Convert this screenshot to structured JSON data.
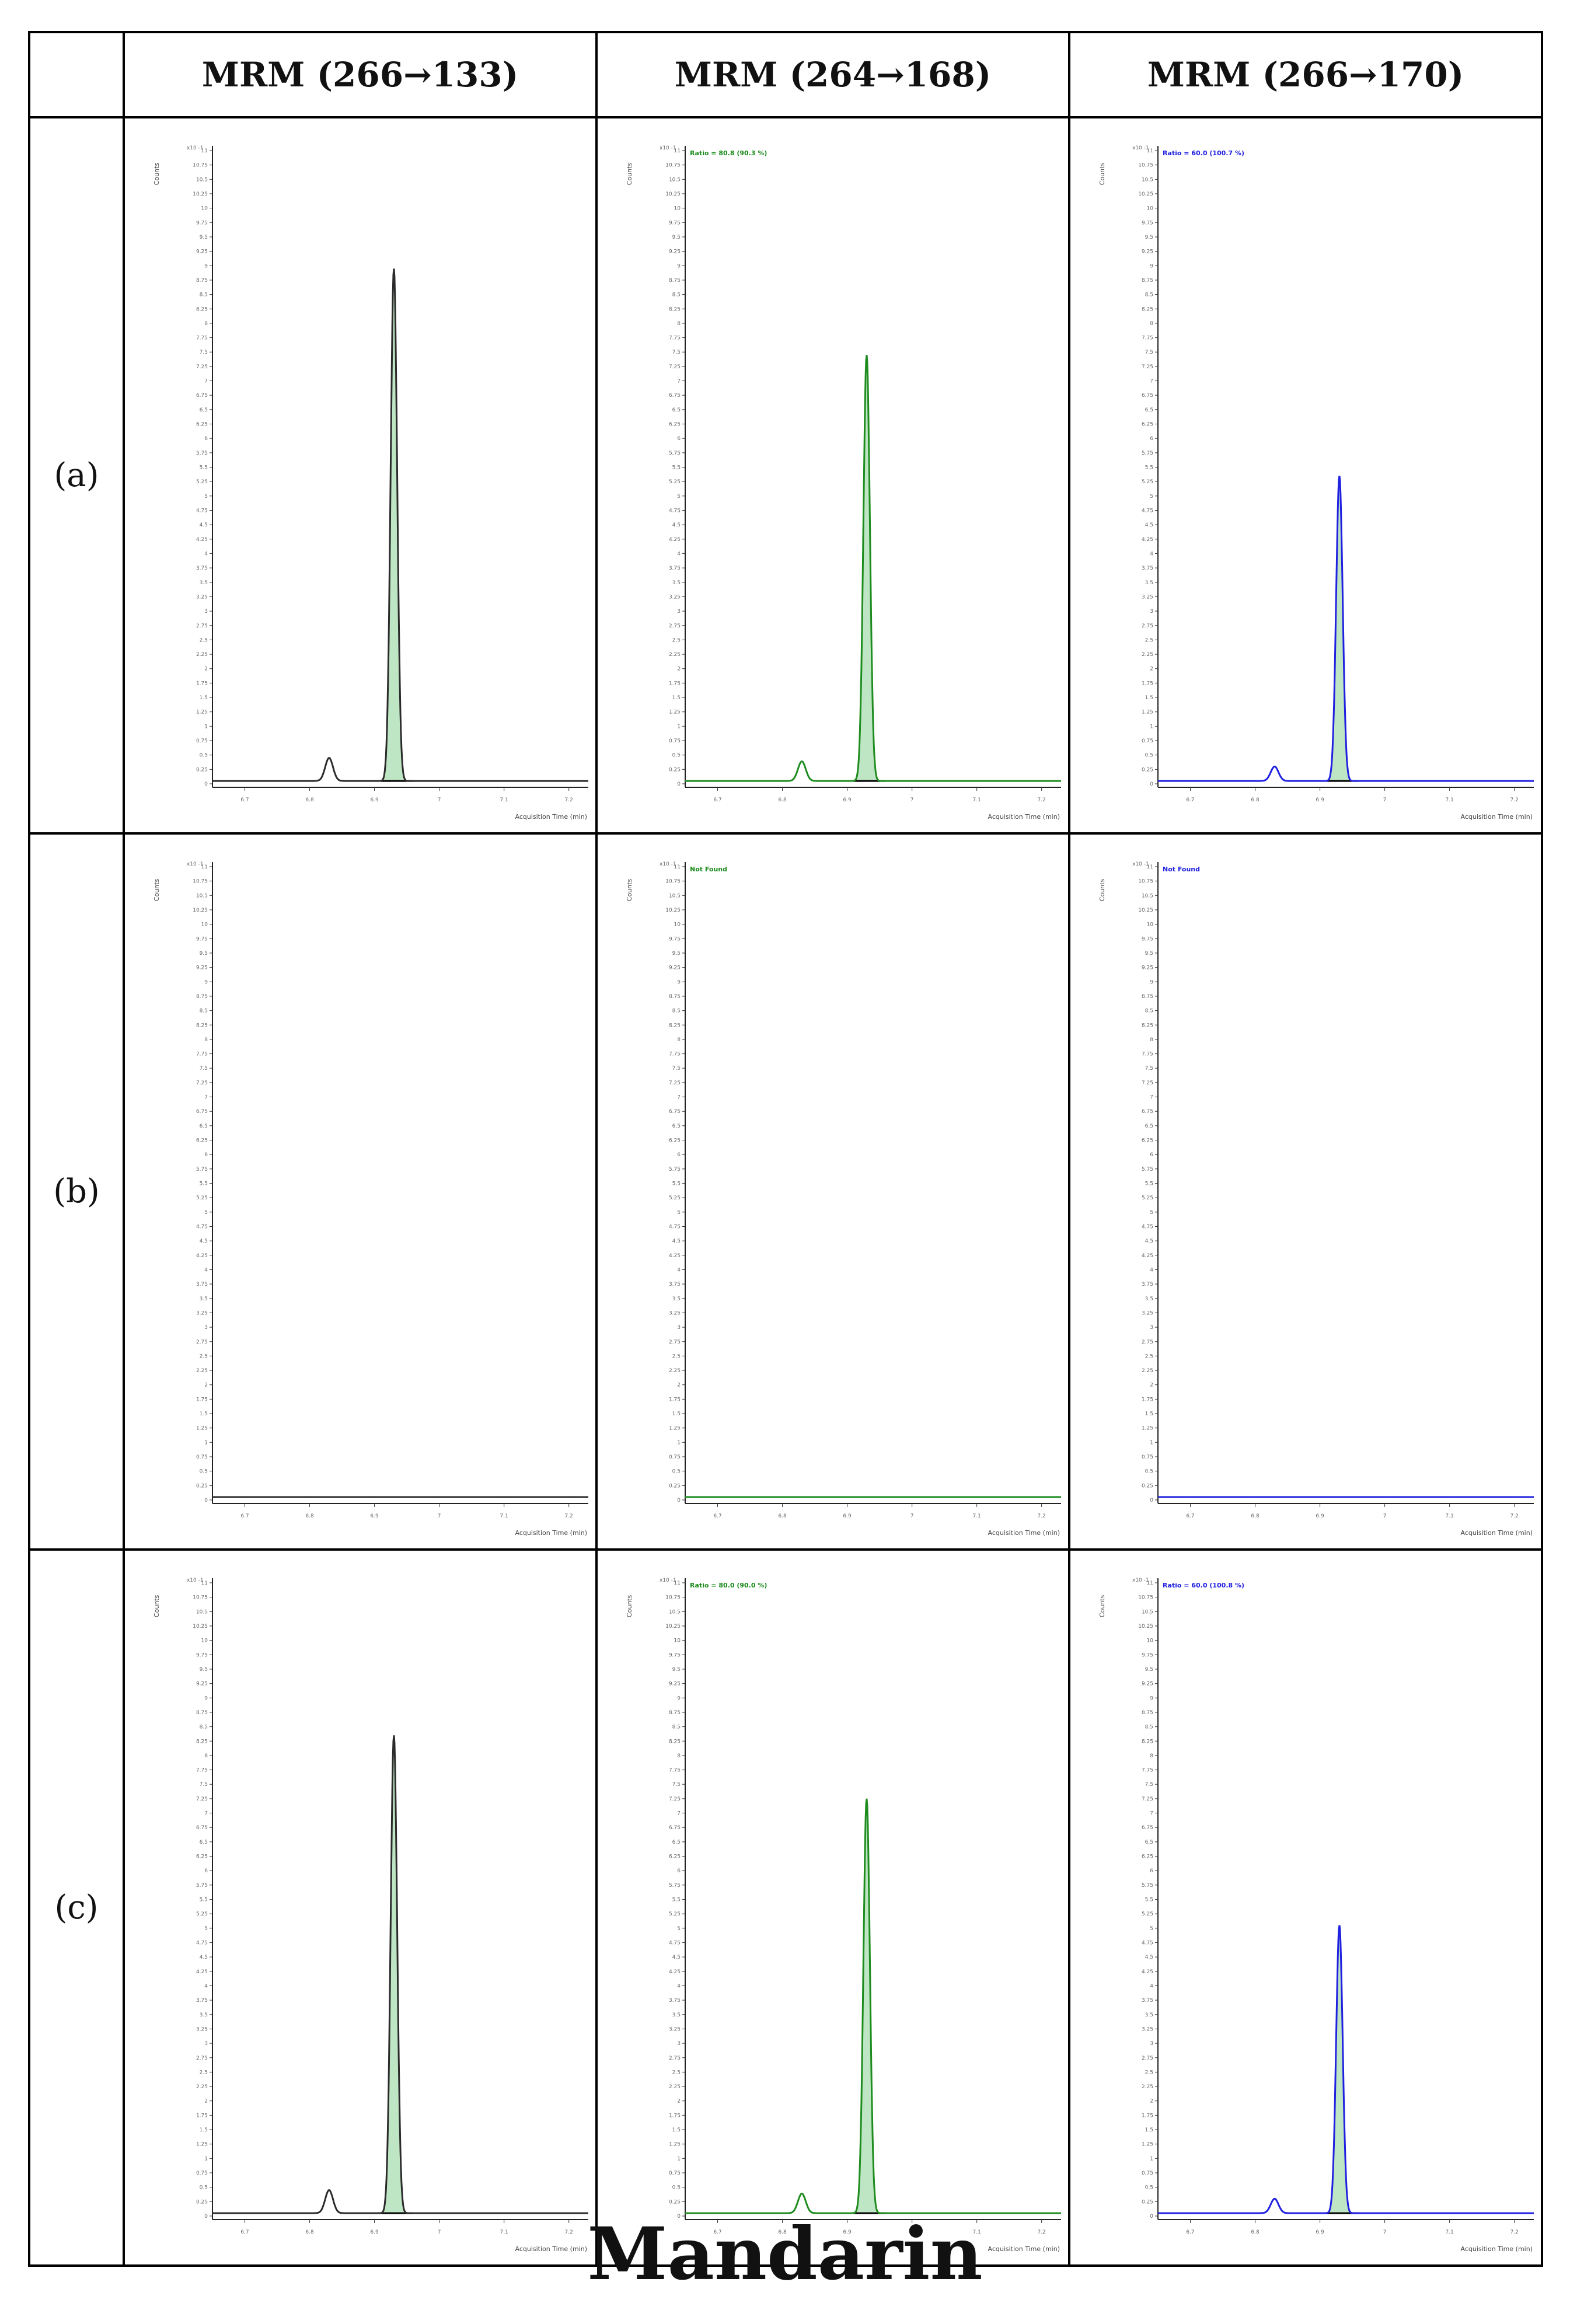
{
  "caption": "Mandarin",
  "columns": [
    {
      "label": "MRM (266→133)",
      "color": "#2b2b2b",
      "fill": "#bfe6c4"
    },
    {
      "label": "MRM (264→168)",
      "color": "#1e8c1e",
      "fill": "#bfe6c4"
    },
    {
      "label": "MRM (266→170)",
      "color": "#2020e0",
      "fill": "#bfe6c4"
    }
  ],
  "rows": [
    {
      "label": "(a)"
    },
    {
      "label": "(b)"
    },
    {
      "label": "(c)"
    }
  ],
  "chart_data": [
    {
      "type": "line",
      "row": "(a)",
      "column": "MRM (266→133)",
      "note": "",
      "xlabel": "Acquisition Time (min)",
      "ylabel": "Counts",
      "y_multiplier": "x10 -1",
      "xlim": [
        6.65,
        7.23
      ],
      "ylim": [
        0,
        11
      ],
      "xticks": [
        "6.7",
        "6.8",
        "6.9",
        "7",
        "7.1",
        "7.2"
      ],
      "yticks": [
        "0",
        "0.25",
        "0.5",
        "0.75",
        "1",
        "1.25",
        "1.5",
        "1.75",
        "2",
        "2.25",
        "2.5",
        "2.75",
        "3",
        "3.25",
        "3.5",
        "3.75",
        "4",
        "4.25",
        "4.5",
        "4.75",
        "5",
        "5.25",
        "5.5",
        "5.75",
        "6",
        "6.25",
        "6.5",
        "6.75",
        "7",
        "7.25",
        "7.5",
        "7.75",
        "8",
        "8.25",
        "8.5",
        "8.75",
        "9",
        "9.25",
        "9.5",
        "9.75",
        "10",
        "10.25",
        "10.5",
        "10.75",
        "11"
      ],
      "peaks": [
        {
          "rt": 6.83,
          "height": 0.4,
          "width": 0.006
        },
        {
          "rt": 6.93,
          "height": 8.9,
          "width": 0.005
        }
      ],
      "baseline": 0.05,
      "integrated_rt": [
        6.915,
        6.95
      ]
    },
    {
      "type": "line",
      "row": "(a)",
      "column": "MRM (264→168)",
      "note": "Ratio = 80.8 (90.3 %)",
      "xlabel": "Acquisition Time (min)",
      "ylabel": "Counts",
      "y_multiplier": "x10 -1",
      "xlim": [
        6.65,
        7.23
      ],
      "ylim": [
        0,
        11
      ],
      "xticks": [
        "6.7",
        "6.8",
        "6.9",
        "7",
        "7.1",
        "7.2"
      ],
      "yticks": [
        "0",
        "0.25",
        "0.5",
        "0.75",
        "1",
        "1.25",
        "1.5",
        "1.75",
        "2",
        "2.25",
        "2.5",
        "2.75",
        "3",
        "3.25",
        "3.5",
        "3.75",
        "4",
        "4.25",
        "4.5",
        "4.75",
        "5",
        "5.25",
        "5.5",
        "5.75",
        "6",
        "6.25",
        "6.5",
        "6.75",
        "7",
        "7.25",
        "7.5",
        "7.75",
        "8",
        "8.25",
        "8.5",
        "8.75",
        "9",
        "9.25",
        "9.5",
        "9.75",
        "10",
        "10.25",
        "10.5",
        "10.75",
        "11"
      ],
      "peaks": [
        {
          "rt": 6.83,
          "height": 0.34,
          "width": 0.006
        },
        {
          "rt": 6.93,
          "height": 7.4,
          "width": 0.005
        }
      ],
      "baseline": 0.05,
      "integrated_rt": [
        6.915,
        6.95
      ]
    },
    {
      "type": "line",
      "row": "(a)",
      "column": "MRM (266→170)",
      "note": "Ratio = 60.0 (100.7 %)",
      "xlabel": "Acquisition Time (min)",
      "ylabel": "Counts",
      "y_multiplier": "x10 -1",
      "xlim": [
        6.65,
        7.23
      ],
      "ylim": [
        0,
        11
      ],
      "xticks": [
        "6.7",
        "6.8",
        "6.9",
        "7",
        "7.1",
        "7.2"
      ],
      "yticks": [
        "0",
        "0.25",
        "0.5",
        "0.75",
        "1",
        "1.25",
        "1.5",
        "1.75",
        "2",
        "2.25",
        "2.5",
        "2.75",
        "3",
        "3.25",
        "3.5",
        "3.75",
        "4",
        "4.25",
        "4.5",
        "4.75",
        "5",
        "5.25",
        "5.5",
        "5.75",
        "6",
        "6.25",
        "6.5",
        "6.75",
        "7",
        "7.25",
        "7.5",
        "7.75",
        "8",
        "8.25",
        "8.5",
        "8.75",
        "9",
        "9.25",
        "9.5",
        "9.75",
        "10",
        "10.25",
        "10.5",
        "10.75",
        "11"
      ],
      "peaks": [
        {
          "rt": 6.83,
          "height": 0.25,
          "width": 0.006
        },
        {
          "rt": 6.93,
          "height": 5.3,
          "width": 0.005
        }
      ],
      "baseline": 0.05,
      "integrated_rt": [
        6.915,
        6.95
      ]
    },
    {
      "type": "line",
      "row": "(b)",
      "column": "MRM (266→133)",
      "note": "",
      "xlabel": "Acquisition Time (min)",
      "ylabel": "Counts",
      "y_multiplier": "x10 -1",
      "xlim": [
        6.65,
        7.23
      ],
      "ylim": [
        0,
        11
      ],
      "xticks": [
        "6.7",
        "6.8",
        "6.9",
        "7",
        "7.1",
        "7.2"
      ],
      "yticks": [
        "0",
        "0.25",
        "0.5",
        "0.75",
        "1",
        "1.25",
        "1.5",
        "1.75",
        "2",
        "2.25",
        "2.5",
        "2.75",
        "3",
        "3.25",
        "3.5",
        "3.75",
        "4",
        "4.25",
        "4.5",
        "4.75",
        "5",
        "5.25",
        "5.5",
        "5.75",
        "6",
        "6.25",
        "6.5",
        "6.75",
        "7",
        "7.25",
        "7.5",
        "7.75",
        "8",
        "8.25",
        "8.5",
        "8.75",
        "9",
        "9.25",
        "9.5",
        "9.75",
        "10",
        "10.25",
        "10.5",
        "10.75",
        "11"
      ],
      "peaks": [],
      "baseline": 0.05,
      "integrated_rt": []
    },
    {
      "type": "line",
      "row": "(b)",
      "column": "MRM (264→168)",
      "note": "Not Found",
      "xlabel": "Acquisition Time (min)",
      "ylabel": "Counts",
      "y_multiplier": "x10 -1",
      "xlim": [
        6.65,
        7.23
      ],
      "ylim": [
        0,
        11
      ],
      "xticks": [
        "6.7",
        "6.8",
        "6.9",
        "7",
        "7.1",
        "7.2"
      ],
      "yticks": [
        "0",
        "0.25",
        "0.5",
        "0.75",
        "1",
        "1.25",
        "1.5",
        "1.75",
        "2",
        "2.25",
        "2.5",
        "2.75",
        "3",
        "3.25",
        "3.5",
        "3.75",
        "4",
        "4.25",
        "4.5",
        "4.75",
        "5",
        "5.25",
        "5.5",
        "5.75",
        "6",
        "6.25",
        "6.5",
        "6.75",
        "7",
        "7.25",
        "7.5",
        "7.75",
        "8",
        "8.25",
        "8.5",
        "8.75",
        "9",
        "9.25",
        "9.5",
        "9.75",
        "10",
        "10.25",
        "10.5",
        "10.75",
        "11"
      ],
      "peaks": [],
      "baseline": 0.05,
      "integrated_rt": []
    },
    {
      "type": "line",
      "row": "(b)",
      "column": "MRM (266→170)",
      "note": "Not Found",
      "xlabel": "Acquisition Time (min)",
      "ylabel": "Counts",
      "y_multiplier": "x10 -1",
      "xlim": [
        6.65,
        7.23
      ],
      "ylim": [
        0,
        11
      ],
      "xticks": [
        "6.7",
        "6.8",
        "6.9",
        "7",
        "7.1",
        "7.2"
      ],
      "yticks": [
        "0",
        "0.25",
        "0.5",
        "0.75",
        "1",
        "1.25",
        "1.5",
        "1.75",
        "2",
        "2.25",
        "2.5",
        "2.75",
        "3",
        "3.25",
        "3.5",
        "3.75",
        "4",
        "4.25",
        "4.5",
        "4.75",
        "5",
        "5.25",
        "5.5",
        "5.75",
        "6",
        "6.25",
        "6.5",
        "6.75",
        "7",
        "7.25",
        "7.5",
        "7.75",
        "8",
        "8.25",
        "8.5",
        "8.75",
        "9",
        "9.25",
        "9.5",
        "9.75",
        "10",
        "10.25",
        "10.5",
        "10.75",
        "11"
      ],
      "peaks": [],
      "baseline": 0.05,
      "integrated_rt": []
    },
    {
      "type": "line",
      "row": "(c)",
      "column": "MRM (266→133)",
      "note": "",
      "xlabel": "Acquisition Time (min)",
      "ylabel": "Counts",
      "y_multiplier": "x10 -1",
      "xlim": [
        6.65,
        7.23
      ],
      "ylim": [
        0,
        11
      ],
      "xticks": [
        "6.7",
        "6.8",
        "6.9",
        "7",
        "7.1",
        "7.2"
      ],
      "yticks": [
        "0",
        "0.25",
        "0.5",
        "0.75",
        "1",
        "1.25",
        "1.5",
        "1.75",
        "2",
        "2.25",
        "2.5",
        "2.75",
        "3",
        "3.25",
        "3.5",
        "3.75",
        "4",
        "4.25",
        "4.5",
        "4.75",
        "5",
        "5.25",
        "5.5",
        "5.75",
        "6",
        "6.25",
        "6.5",
        "6.75",
        "7",
        "7.25",
        "7.5",
        "7.75",
        "8",
        "8.25",
        "8.5",
        "8.75",
        "9",
        "9.25",
        "9.5",
        "9.75",
        "10",
        "10.25",
        "10.5",
        "10.75",
        "11"
      ],
      "peaks": [
        {
          "rt": 6.83,
          "height": 0.4,
          "width": 0.006
        },
        {
          "rt": 6.93,
          "height": 8.3,
          "width": 0.005
        }
      ],
      "baseline": 0.05,
      "integrated_rt": [
        6.915,
        6.95
      ]
    },
    {
      "type": "line",
      "row": "(c)",
      "column": "MRM (264→168)",
      "note": "Ratio = 80.0 (90.0 %)",
      "xlabel": "Acquisition Time (min)",
      "ylabel": "Counts",
      "y_multiplier": "x10 -1",
      "xlim": [
        6.65,
        7.23
      ],
      "ylim": [
        0,
        11
      ],
      "xticks": [
        "6.7",
        "6.8",
        "6.9",
        "7",
        "7.1",
        "7.2"
      ],
      "yticks": [
        "0",
        "0.25",
        "0.5",
        "0.75",
        "1",
        "1.25",
        "1.5",
        "1.75",
        "2",
        "2.25",
        "2.5",
        "2.75",
        "3",
        "3.25",
        "3.5",
        "3.75",
        "4",
        "4.25",
        "4.5",
        "4.75",
        "5",
        "5.25",
        "5.5",
        "5.75",
        "6",
        "6.25",
        "6.5",
        "6.75",
        "7",
        "7.25",
        "7.5",
        "7.75",
        "8",
        "8.25",
        "8.5",
        "8.75",
        "9",
        "9.25",
        "9.5",
        "9.75",
        "10",
        "10.25",
        "10.5",
        "10.75",
        "11"
      ],
      "peaks": [
        {
          "rt": 6.83,
          "height": 0.34,
          "width": 0.006
        },
        {
          "rt": 6.93,
          "height": 7.2,
          "width": 0.005
        }
      ],
      "baseline": 0.05,
      "integrated_rt": [
        6.915,
        6.95
      ]
    },
    {
      "type": "line",
      "row": "(c)",
      "column": "MRM (266→170)",
      "note": "Ratio = 60.0 (100.8 %)",
      "xlabel": "Acquisition Time (min)",
      "ylabel": "Counts",
      "y_multiplier": "x10 -1",
      "xlim": [
        6.65,
        7.23
      ],
      "ylim": [
        0,
        11
      ],
      "xticks": [
        "6.7",
        "6.8",
        "6.9",
        "7",
        "7.1",
        "7.2"
      ],
      "yticks": [
        "0",
        "0.25",
        "0.5",
        "0.75",
        "1",
        "1.25",
        "1.5",
        "1.75",
        "2",
        "2.25",
        "2.5",
        "2.75",
        "3",
        "3.25",
        "3.5",
        "3.75",
        "4",
        "4.25",
        "4.5",
        "4.75",
        "5",
        "5.25",
        "5.5",
        "5.75",
        "6",
        "6.25",
        "6.5",
        "6.75",
        "7",
        "7.25",
        "7.5",
        "7.75",
        "8",
        "8.25",
        "8.5",
        "8.75",
        "9",
        "9.25",
        "9.5",
        "9.75",
        "10",
        "10.25",
        "10.5",
        "10.75",
        "11"
      ],
      "peaks": [
        {
          "rt": 6.83,
          "height": 0.25,
          "width": 0.006
        },
        {
          "rt": 6.93,
          "height": 5.0,
          "width": 0.005
        }
      ],
      "baseline": 0.05,
      "integrated_rt": [
        6.915,
        6.95
      ]
    }
  ]
}
